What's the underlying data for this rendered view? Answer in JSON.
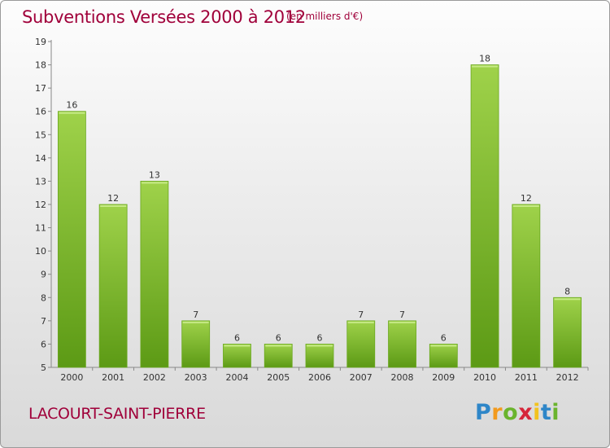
{
  "chart_data": {
    "type": "bar",
    "title": "Subventions Versées 2000 à 2012",
    "subtitle": "(en milliers d'€)",
    "categories": [
      "2000",
      "2001",
      "2002",
      "2003",
      "2004",
      "2005",
      "2006",
      "2007",
      "2008",
      "2009",
      "2010",
      "2011",
      "2012"
    ],
    "values": [
      16,
      12,
      13,
      7,
      6,
      6,
      6,
      7,
      7,
      6,
      18,
      12,
      8
    ],
    "ylim": [
      5,
      19
    ],
    "yticks": [
      5,
      6,
      7,
      8,
      9,
      10,
      11,
      12,
      13,
      14,
      15,
      16,
      17,
      18,
      19
    ],
    "grid": false,
    "bar_color_top": "#9fd24a",
    "bar_color_bottom": "#5c9a15"
  },
  "commune": "LACOURT-SAINT-PIERRE",
  "logo": {
    "letters": [
      "P",
      "r",
      "o",
      "x",
      "i",
      "t",
      "i"
    ],
    "colors": [
      "#2e86c8",
      "#f29a1e",
      "#6ab42d",
      "#d6263a",
      "#f2c21e",
      "#2e86c8",
      "#6ab42d"
    ]
  }
}
